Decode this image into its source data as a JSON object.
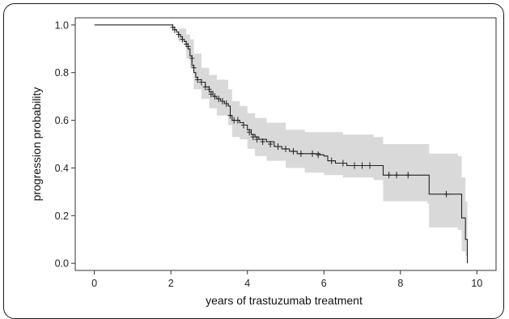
{
  "chart_data": {
    "type": "line",
    "subtype": "kaplan-meier",
    "title": "",
    "xlabel": "years of trastuzumab treatment",
    "ylabel": "progression probability",
    "xlim": [
      -0.5,
      10.5
    ],
    "ylim": [
      -0.03,
      1.03
    ],
    "xticks": [
      "0",
      "2",
      "4",
      "6",
      "8",
      "10"
    ],
    "yticks": [
      "0.0",
      "0.2",
      "0.4",
      "0.6",
      "0.8",
      "1.0"
    ],
    "grid": false,
    "legend": "none",
    "colors": {
      "line": "#222222",
      "band": "#d9d9d9",
      "censor": "#222222"
    },
    "series": [
      {
        "values": [
          [
            0,
            1.0
          ],
          [
            2.02,
            1.0
          ],
          [
            2.05,
            0.99
          ],
          [
            2.1,
            0.98
          ],
          [
            2.15,
            0.97
          ],
          [
            2.2,
            0.96
          ],
          [
            2.25,
            0.95
          ],
          [
            2.3,
            0.94
          ],
          [
            2.35,
            0.93
          ],
          [
            2.4,
            0.92
          ],
          [
            2.45,
            0.9
          ],
          [
            2.5,
            0.87
          ],
          [
            2.55,
            0.83
          ],
          [
            2.6,
            0.8
          ],
          [
            2.65,
            0.78
          ],
          [
            2.7,
            0.77
          ],
          [
            2.8,
            0.76
          ],
          [
            2.9,
            0.74
          ],
          [
            3.0,
            0.72
          ],
          [
            3.1,
            0.7
          ],
          [
            3.2,
            0.69
          ],
          [
            3.3,
            0.68
          ],
          [
            3.4,
            0.67
          ],
          [
            3.5,
            0.66
          ],
          [
            3.55,
            0.62
          ],
          [
            3.6,
            0.6
          ],
          [
            3.7,
            0.6
          ],
          [
            3.8,
            0.59
          ],
          [
            3.9,
            0.58
          ],
          [
            4.0,
            0.56
          ],
          [
            4.1,
            0.54
          ],
          [
            4.2,
            0.53
          ],
          [
            4.3,
            0.52
          ],
          [
            4.5,
            0.51
          ],
          [
            4.7,
            0.49
          ],
          [
            4.9,
            0.48
          ],
          [
            5.1,
            0.47
          ],
          [
            5.3,
            0.46
          ],
          [
            5.5,
            0.46
          ],
          [
            5.9,
            0.455
          ],
          [
            6.0,
            0.45
          ],
          [
            6.1,
            0.43
          ],
          [
            6.3,
            0.42
          ],
          [
            6.6,
            0.41
          ],
          [
            7.3,
            0.41
          ],
          [
            7.55,
            0.37
          ],
          [
            8.7,
            0.37
          ],
          [
            8.75,
            0.29
          ],
          [
            9.5,
            0.29
          ],
          [
            9.6,
            0.19
          ],
          [
            9.7,
            0.1
          ],
          [
            9.75,
            0.0
          ]
        ],
        "ci_upper": [
          [
            0,
            1.0
          ],
          [
            2.02,
            1.0
          ],
          [
            2.2,
            0.985
          ],
          [
            2.4,
            0.96
          ],
          [
            2.5,
            0.94
          ],
          [
            2.6,
            0.88
          ],
          [
            2.8,
            0.82
          ],
          [
            3.0,
            0.79
          ],
          [
            3.2,
            0.77
          ],
          [
            3.5,
            0.73
          ],
          [
            3.6,
            0.68
          ],
          [
            3.8,
            0.66
          ],
          [
            4.0,
            0.63
          ],
          [
            4.2,
            0.61
          ],
          [
            4.5,
            0.59
          ],
          [
            5.0,
            0.56
          ],
          [
            5.5,
            0.55
          ],
          [
            6.0,
            0.55
          ],
          [
            6.5,
            0.54
          ],
          [
            7.3,
            0.53
          ],
          [
            7.55,
            0.5
          ],
          [
            8.7,
            0.5
          ],
          [
            8.75,
            0.46
          ],
          [
            9.5,
            0.45
          ],
          [
            9.6,
            0.36
          ],
          [
            9.7,
            0.26
          ],
          [
            9.75,
            0.26
          ]
        ],
        "ci_lower": [
          [
            0,
            1.0
          ],
          [
            2.02,
            1.0
          ],
          [
            2.2,
            0.93
          ],
          [
            2.4,
            0.86
          ],
          [
            2.5,
            0.82
          ],
          [
            2.6,
            0.73
          ],
          [
            2.8,
            0.69
          ],
          [
            3.0,
            0.65
          ],
          [
            3.2,
            0.62
          ],
          [
            3.5,
            0.58
          ],
          [
            3.6,
            0.53
          ],
          [
            3.8,
            0.52
          ],
          [
            4.0,
            0.48
          ],
          [
            4.2,
            0.45
          ],
          [
            4.5,
            0.43
          ],
          [
            5.0,
            0.4
          ],
          [
            5.5,
            0.38
          ],
          [
            6.0,
            0.37
          ],
          [
            6.5,
            0.36
          ],
          [
            7.3,
            0.35
          ],
          [
            7.55,
            0.26
          ],
          [
            8.7,
            0.25
          ],
          [
            8.75,
            0.15
          ],
          [
            9.5,
            0.14
          ],
          [
            9.6,
            0.05
          ],
          [
            9.7,
            0.03
          ],
          [
            9.75,
            0.03
          ]
        ],
        "censored": [
          [
            2.05,
            0.99
          ],
          [
            2.1,
            0.98
          ],
          [
            2.2,
            0.96
          ],
          [
            2.3,
            0.94
          ],
          [
            2.4,
            0.92
          ],
          [
            2.45,
            0.91
          ],
          [
            2.55,
            0.86
          ],
          [
            2.6,
            0.82
          ],
          [
            2.7,
            0.77
          ],
          [
            2.8,
            0.76
          ],
          [
            2.9,
            0.74
          ],
          [
            3.0,
            0.73
          ],
          [
            3.05,
            0.71
          ],
          [
            3.15,
            0.7
          ],
          [
            3.25,
            0.69
          ],
          [
            3.35,
            0.68
          ],
          [
            3.45,
            0.67
          ],
          [
            3.55,
            0.62
          ],
          [
            3.65,
            0.6
          ],
          [
            3.75,
            0.6
          ],
          [
            3.9,
            0.58
          ],
          [
            4.05,
            0.55
          ],
          [
            4.15,
            0.53
          ],
          [
            4.25,
            0.52
          ],
          [
            4.4,
            0.51
          ],
          [
            4.6,
            0.5
          ],
          [
            4.8,
            0.49
          ],
          [
            5.0,
            0.48
          ],
          [
            5.2,
            0.47
          ],
          [
            5.4,
            0.46
          ],
          [
            5.7,
            0.46
          ],
          [
            5.85,
            0.455
          ],
          [
            6.2,
            0.43
          ],
          [
            6.5,
            0.42
          ],
          [
            6.8,
            0.41
          ],
          [
            7.0,
            0.41
          ],
          [
            7.2,
            0.41
          ],
          [
            7.7,
            0.37
          ],
          [
            7.9,
            0.37
          ],
          [
            8.2,
            0.37
          ],
          [
            9.2,
            0.29
          ]
        ]
      }
    ]
  }
}
